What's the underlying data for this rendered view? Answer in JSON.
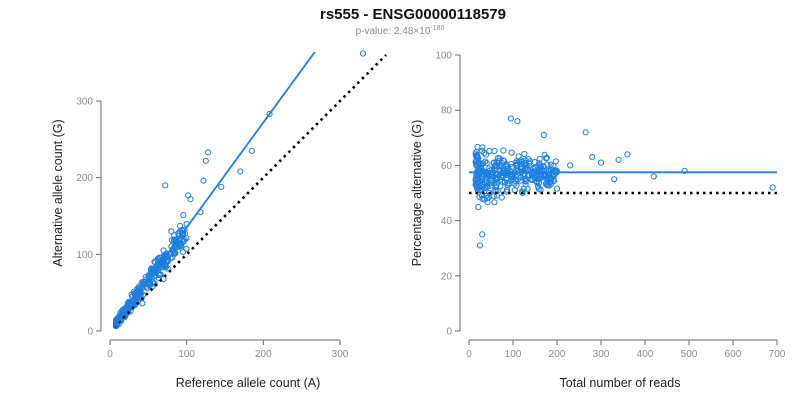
{
  "title": "rs555 - ENSG00000118579",
  "subtitle": {
    "prefix": "p-value: 2.48",
    "times": "×",
    "base": "10",
    "exponent": "-180"
  },
  "colors": {
    "points": "#1e7fe0",
    "fit": "#1e7fe0",
    "reference": "#000000",
    "axis": "#666666"
  },
  "chart_data": [
    {
      "type": "scatter",
      "xlabel": "Reference allele count (A)",
      "ylabel": "Alternative allele count (G)",
      "xlim": [
        0,
        300
      ],
      "ylim": [
        0,
        300
      ],
      "xticks": [
        0,
        100,
        200,
        300
      ],
      "yticks": [
        0,
        100,
        200,
        300
      ],
      "fit_line": {
        "slope": 1.37,
        "intercept": -2,
        "x_from": 5,
        "x_to": 267
      },
      "reference_line": {
        "slope": 1,
        "intercept": 0,
        "x_from": 5,
        "x_to": 360
      },
      "notable_points": [
        {
          "x": 330,
          "y": 362
        },
        {
          "x": 208,
          "y": 283
        },
        {
          "x": 128,
          "y": 233
        },
        {
          "x": 72,
          "y": 190
        },
        {
          "x": 185,
          "y": 235
        },
        {
          "x": 170,
          "y": 208
        },
        {
          "x": 125,
          "y": 222
        },
        {
          "x": 122,
          "y": 196
        },
        {
          "x": 145,
          "y": 188
        },
        {
          "x": 102,
          "y": 177
        },
        {
          "x": 105,
          "y": 172
        },
        {
          "x": 118,
          "y": 155
        },
        {
          "x": 80,
          "y": 130
        }
      ],
      "dense_cluster": {
        "x_range": [
          8,
          100
        ],
        "approx_n": 340,
        "ratio_mean": 1.3
      }
    },
    {
      "type": "scatter",
      "xlabel": "Total number of reads",
      "ylabel": "Percentage alternative (G)",
      "xlim": [
        0,
        700
      ],
      "ylim": [
        0,
        100
      ],
      "xticks": [
        0,
        100,
        200,
        300,
        400,
        500,
        600,
        700
      ],
      "yticks": [
        0,
        20,
        40,
        60,
        80,
        100
      ],
      "fit_line": {
        "y": 57.5,
        "x_from": 0,
        "x_to": 700
      },
      "reference_line": {
        "y": 50,
        "x_from": 0,
        "x_to": 700
      },
      "notable_points": [
        {
          "x": 690,
          "y": 52
        },
        {
          "x": 490,
          "y": 58
        },
        {
          "x": 420,
          "y": 56
        },
        {
          "x": 360,
          "y": 64
        },
        {
          "x": 340,
          "y": 62
        },
        {
          "x": 265,
          "y": 72
        },
        {
          "x": 330,
          "y": 55
        },
        {
          "x": 300,
          "y": 61
        },
        {
          "x": 280,
          "y": 63
        },
        {
          "x": 230,
          "y": 60
        },
        {
          "x": 25,
          "y": 31
        },
        {
          "x": 30,
          "y": 35
        },
        {
          "x": 95,
          "y": 77
        },
        {
          "x": 110,
          "y": 76
        },
        {
          "x": 170,
          "y": 71
        }
      ],
      "dense_cluster": {
        "x_range": [
          15,
          200
        ],
        "approx_n": 340,
        "y_range": [
          40,
          70
        ],
        "center": 57
      }
    }
  ]
}
